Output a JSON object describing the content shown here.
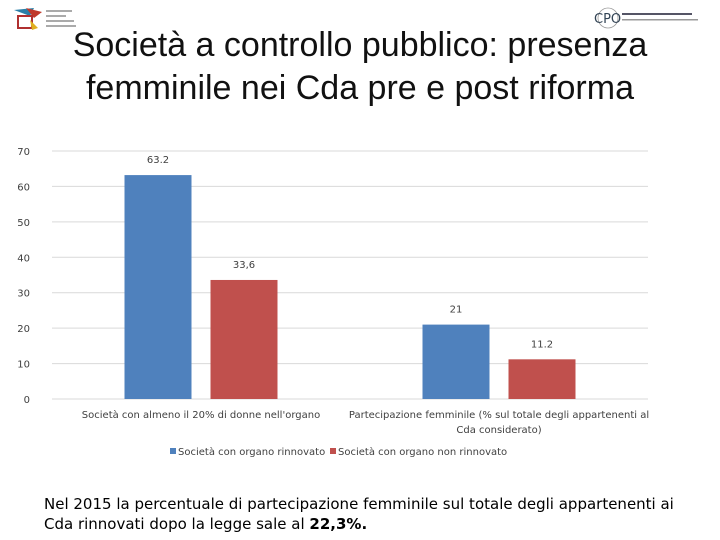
{
  "title": "Società a controllo pubblico: presenza femminile nei Cda pre e post riforma",
  "logos": {
    "left": "university-logo",
    "right": "CPO"
  },
  "footer": {
    "text": "Nel 2015 la percentuale di partecipazione femminile sul totale degli appartenenti ai Cda rinnovati dopo la legge sale al ",
    "highlight": "22,3%."
  },
  "chart_data": {
    "type": "bar",
    "categories": [
      "Società con almeno il 20% di donne nell'organo",
      "Partecipazione femminile  (% sul totale degli appartenenti al Cda considerato)"
    ],
    "category_lines": [
      [
        "Società con almeno il 20% di donne nell'organo"
      ],
      [
        "Partecipazione femminile  (% sul totale degli appartenenti al",
        "Cda considerato)"
      ]
    ],
    "series": [
      {
        "name": "Società con organo rinnovato",
        "values": [
          63.2,
          21
        ],
        "labels": [
          "63.2",
          "21"
        ],
        "color": "#4f81bd"
      },
      {
        "name": "Società con organo non rinnovato",
        "values": [
          33.6,
          11.2
        ],
        "labels": [
          "33,6",
          "11.2"
        ],
        "color": "#c0504d"
      }
    ],
    "ylim": [
      0,
      70
    ],
    "yticks": [
      "0",
      "10",
      "20",
      "30",
      "40",
      "50",
      "60",
      "70"
    ],
    "grid": true,
    "legend": "bottom"
  }
}
